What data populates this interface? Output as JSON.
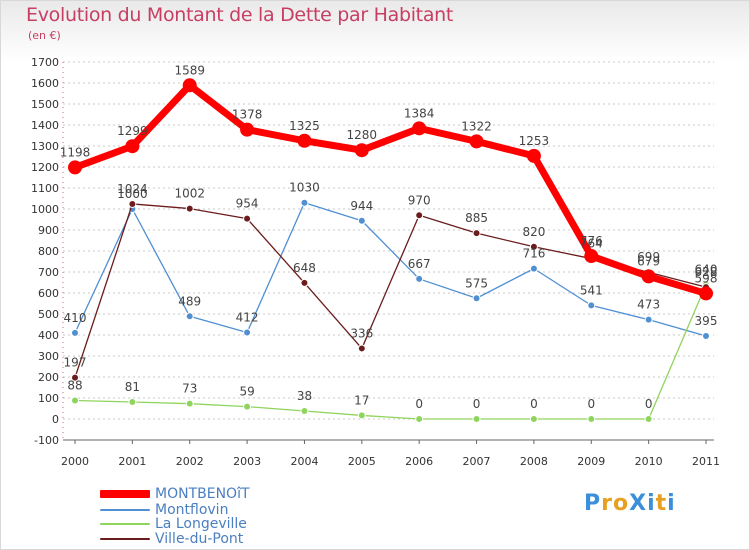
{
  "title": "Evolution du Montant de la Dette par Habitant",
  "unit": "(en €)",
  "logo": "ProXiti",
  "chart_data": {
    "type": "line",
    "title": "Evolution du Montant de la Dette par Habitant",
    "ylabel": "(en €)",
    "xlabel": "",
    "x": [
      "2000",
      "2001",
      "2002",
      "2003",
      "2004",
      "2005",
      "2006",
      "2007",
      "2008",
      "2009",
      "2010",
      "2011"
    ],
    "ylim": [
      -100,
      1700
    ],
    "yticks": [
      -100,
      0,
      100,
      200,
      300,
      400,
      500,
      600,
      700,
      800,
      900,
      1000,
      1100,
      1200,
      1300,
      1400,
      1500,
      1600,
      1700
    ],
    "grid": "horizontal dotted",
    "legend": "bottom-left",
    "series": [
      {
        "name": "MONTBENOîT",
        "color": "#ff0000",
        "values": [
          1198,
          1299,
          1589,
          1378,
          1325,
          1280,
          1384,
          1322,
          1253,
          776,
          679,
          598
        ],
        "labels": [
          "1198",
          "1299",
          "1589",
          "1378",
          "1325",
          "1280",
          "1384",
          "1322",
          "1253",
          "776",
          "679",
          "598"
        ]
      },
      {
        "name": "Montflovin",
        "color": "#4f8fd2",
        "values": [
          410,
          1000,
          489,
          412,
          1030,
          944,
          667,
          575,
          716,
          541,
          473,
          395
        ],
        "labels": [
          "410",
          "1000",
          "489",
          "412",
          "1030",
          "944",
          "667",
          "575",
          "716",
          "541",
          "473",
          "395"
        ]
      },
      {
        "name": "La Longeville",
        "color": "#8fd45c",
        "values": [
          88,
          81,
          73,
          59,
          38,
          17,
          0,
          0,
          0,
          0,
          0,
          640
        ],
        "labels": [
          "88",
          "81",
          "73",
          "59",
          "38",
          "17",
          "0",
          "0",
          "0",
          "0",
          "0",
          "640"
        ]
      },
      {
        "name": "Ville-du-Pont",
        "color": "#6b1c1c",
        "values": [
          197,
          1024,
          1002,
          954,
          648,
          336,
          970,
          885,
          820,
          764,
          699,
          628
        ],
        "labels": [
          "197",
          "1024",
          "1002",
          "954",
          "648",
          "336",
          "970",
          "885",
          "820",
          "764",
          "699",
          "628"
        ]
      }
    ]
  }
}
